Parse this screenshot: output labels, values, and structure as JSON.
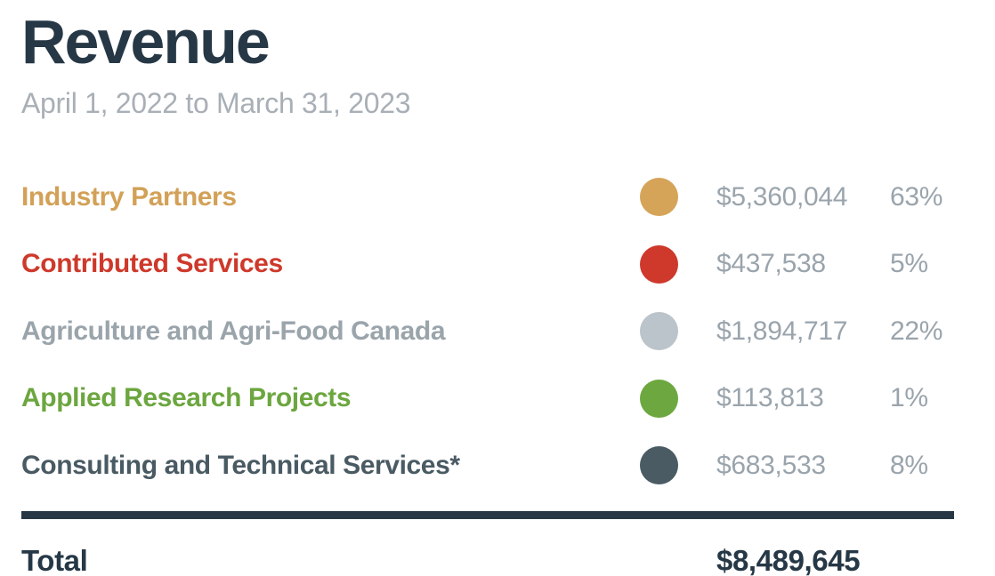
{
  "header": {
    "title": "Revenue",
    "subtitle": "April 1, 2022 to March 31, 2023"
  },
  "palette": {
    "dark": "#263846",
    "muted_text": "#9AA4AC",
    "subtitle_gray": "#A9AFB6"
  },
  "rows": [
    {
      "label": "Industry Partners",
      "label_color": "#D2A157",
      "dot_color": "#D5A458",
      "amount": "$5,360,044",
      "percent": "63%"
    },
    {
      "label": "Contributed Services",
      "label_color": "#CE392B",
      "dot_color": "#CE392B",
      "amount": "$437,538",
      "percent": "5%"
    },
    {
      "label": "Agriculture and Agri-Food Canada",
      "label_color": "#9AA4AB",
      "dot_color": "#BBC4CA",
      "amount": "$1,894,717",
      "percent": "22%"
    },
    {
      "label": "Applied Research Projects",
      "label_color": "#6CA63F",
      "dot_color": "#6CA83F",
      "amount": "$113,813",
      "percent": "1%"
    },
    {
      "label": "Consulting and Technical Services*",
      "label_color": "#495A63",
      "dot_color": "#4A5B64",
      "amount": "$683,533",
      "percent": "8%"
    }
  ],
  "total": {
    "label": "Total",
    "amount": "$8,489,645"
  },
  "chart_data": {
    "type": "table",
    "title": "Revenue",
    "subtitle": "April 1, 2022 to March 31, 2023",
    "categories": [
      "Industry Partners",
      "Contributed Services",
      "Agriculture and Agri-Food Canada",
      "Applied Research Projects",
      "Consulting and Technical Services*"
    ],
    "values": [
      5360044,
      437538,
      1894717,
      113813,
      683533
    ],
    "percents": [
      63,
      5,
      22,
      1,
      8
    ],
    "colors": [
      "#D5A458",
      "#CE392B",
      "#BBC4CA",
      "#6CA83F",
      "#4A5B64"
    ],
    "total": 8489645,
    "legend_position": "inline-rows",
    "grid": false
  }
}
